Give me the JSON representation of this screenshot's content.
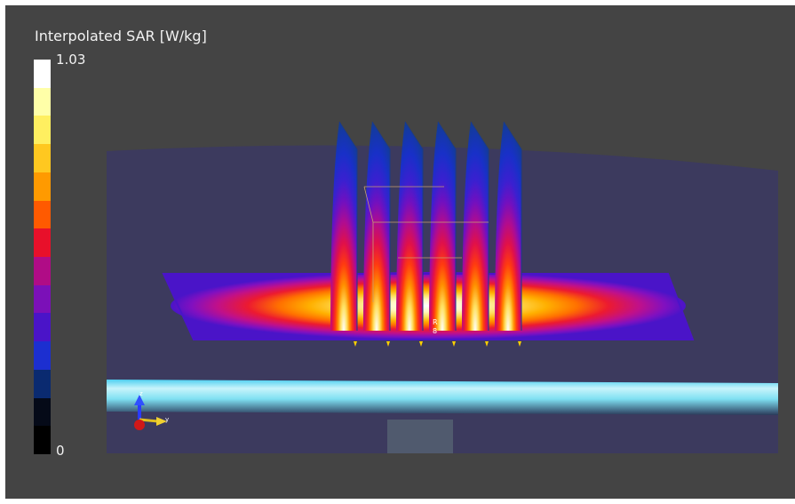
{
  "colorbar": {
    "title": "Interpolated SAR [W/kg]",
    "max_label": "1.03",
    "min_label": "0",
    "colors_top_to_bottom": [
      "#ffffff",
      "#ffffa8",
      "#ffef60",
      "#ffc820",
      "#ff9a00",
      "#ff5a00",
      "#e8102a",
      "#b00c86",
      "#7b10b8",
      "#4a14c8",
      "#1c2fd0",
      "#0a2a70",
      "#050a18",
      "#000000"
    ]
  },
  "labels": {
    "probe_top": "R",
    "probe_bottom": "8",
    "axis_z": "z",
    "axis_y": "y"
  },
  "theme": {
    "viewport_bg": "#444444",
    "phantom_color": "#3c3a5e",
    "cable_color": "#7fe4f6"
  }
}
